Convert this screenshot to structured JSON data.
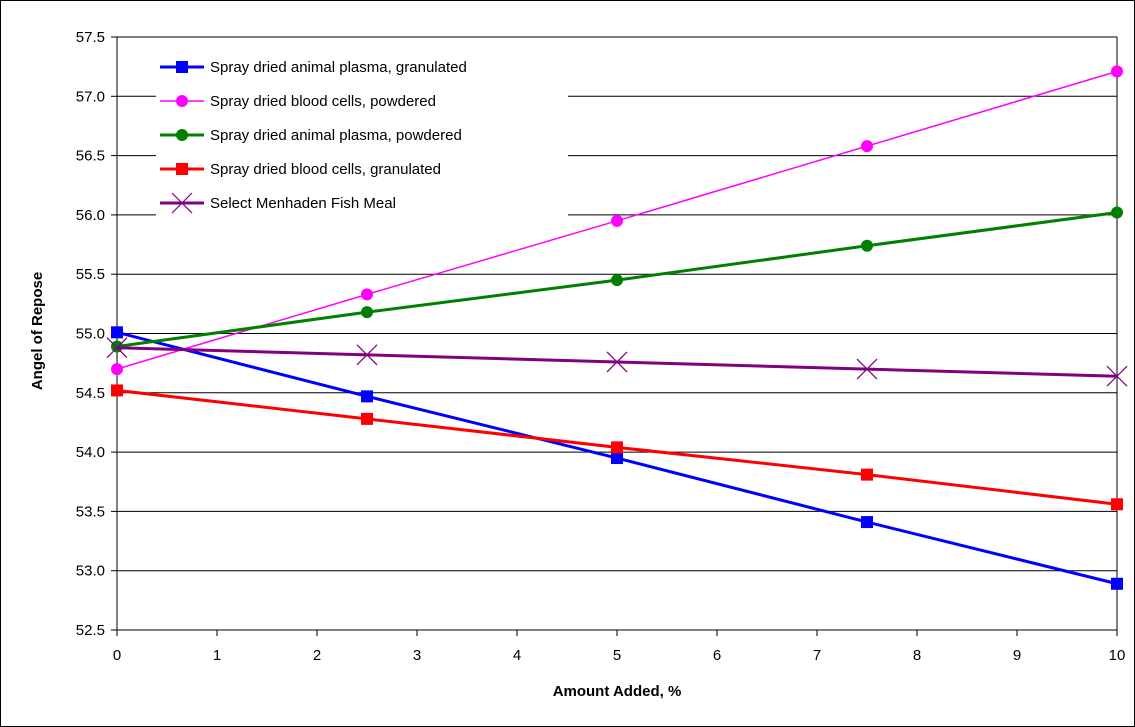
{
  "chart_data": {
    "type": "line",
    "xlabel": "Amount Added, %",
    "ylabel": "Angel of Repose",
    "xlim": [
      0,
      10
    ],
    "ylim": [
      52.5,
      57.5
    ],
    "xticks": [
      0,
      1,
      2,
      3,
      4,
      5,
      6,
      7,
      8,
      9,
      10
    ],
    "yticks": [
      52.5,
      53.0,
      53.5,
      54.0,
      54.5,
      55.0,
      55.5,
      56.0,
      56.5,
      57.0,
      57.5
    ],
    "grid": "horizontal",
    "legend_position": "top-left",
    "series": [
      {
        "name": "Spray dried animal plasma, granulated",
        "color": "#0000ff",
        "marker": "square",
        "x": [
          0,
          2.5,
          5,
          7.5,
          10
        ],
        "y": [
          55.01,
          54.47,
          53.95,
          53.41,
          52.89
        ]
      },
      {
        "name": "Spray dried blood cells, powdered",
        "color": "#ff00ff",
        "marker": "circle",
        "x": [
          0,
          2.5,
          5,
          7.5,
          10
        ],
        "y": [
          54.7,
          55.33,
          55.95,
          56.58,
          57.21
        ]
      },
      {
        "name": "Spray dried animal plasma, powdered",
        "color": "#008000",
        "marker": "circle",
        "x": [
          0,
          2.5,
          5,
          7.5,
          10
        ],
        "y": [
          54.89,
          55.18,
          55.45,
          55.74,
          56.02
        ]
      },
      {
        "name": "Spray dried blood cells, granulated",
        "color": "#ff0000",
        "marker": "square",
        "x": [
          0,
          2.5,
          5,
          7.5,
          10
        ],
        "y": [
          54.52,
          54.28,
          54.04,
          53.81,
          53.56
        ]
      },
      {
        "name": "Select Menhaden Fish Meal",
        "color": "#800080",
        "marker": "x",
        "x": [
          0,
          2.5,
          5,
          7.5,
          10
        ],
        "y": [
          54.88,
          54.82,
          54.76,
          54.7,
          54.64
        ]
      }
    ]
  }
}
